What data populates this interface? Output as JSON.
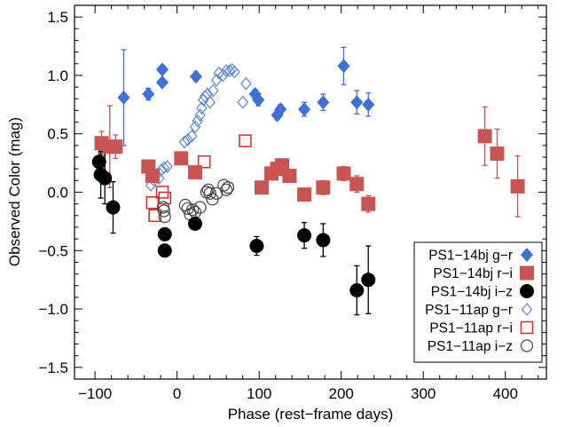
{
  "chart_data": {
    "type": "scatter",
    "xlabel": "Phase (rest−frame days)",
    "ylabel": "Observed Color (mag)",
    "xlim": [
      -125,
      450
    ],
    "ylim": [
      -1.6,
      1.6
    ],
    "xticks": [
      -100,
      0,
      100,
      200,
      300,
      400
    ],
    "xtick_labels": [
      "−100",
      "0",
      "100",
      "200",
      "300",
      "400"
    ],
    "yticks": [
      -1.5,
      -1.0,
      -0.5,
      0.0,
      0.5,
      1.0,
      1.5
    ],
    "ytick_labels": [
      "−1.5",
      "−1.0",
      "−0.5",
      "0.0",
      "0.5",
      "1.0",
      "1.5"
    ],
    "grid": false,
    "legend_position": "bottom-right",
    "series": [
      {
        "name": "PS1−14bj g−r",
        "marker": "filled-diamond",
        "color": "#3f6fd8",
        "points": [
          {
            "x": -65,
            "y": 0.81,
            "err": 0.41
          },
          {
            "x": -35,
            "y": 0.84,
            "err": 0.05
          },
          {
            "x": -18,
            "y": 0.94,
            "err": 0.03
          },
          {
            "x": -18,
            "y": 1.05,
            "err": 0.03
          },
          {
            "x": 23,
            "y": 0.99,
            "err": 0.03
          },
          {
            "x": 95,
            "y": 0.84,
            "err": 0.04
          },
          {
            "x": 99,
            "y": 0.79,
            "err": 0.05
          },
          {
            "x": 122,
            "y": 0.66,
            "err": 0.04
          },
          {
            "x": 126,
            "y": 0.71,
            "err": 0.04
          },
          {
            "x": 155,
            "y": 0.71,
            "err": 0.06
          },
          {
            "x": 178,
            "y": 0.77,
            "err": 0.07
          },
          {
            "x": 203,
            "y": 1.08,
            "err": 0.16
          },
          {
            "x": 219,
            "y": 0.77,
            "err": 0.1
          },
          {
            "x": 233,
            "y": 0.75,
            "err": 0.1
          }
        ]
      },
      {
        "name": "PS1−14bj r−i",
        "marker": "filled-square",
        "color": "#c95454",
        "points": [
          {
            "x": -92,
            "y": 0.42,
            "err": 0.1
          },
          {
            "x": -82,
            "y": 0.39,
            "err": 0.35
          },
          {
            "x": -75,
            "y": 0.39,
            "err": 0.1
          },
          {
            "x": -35,
            "y": 0.22,
            "err": 0.05
          },
          {
            "x": -30,
            "y": 0.14,
            "err": 0.05
          },
          {
            "x": 5,
            "y": 0.29,
            "err": 0.04
          },
          {
            "x": 22,
            "y": 0.17,
            "err": 0.04
          },
          {
            "x": 103,
            "y": 0.04,
            "err": 0.04
          },
          {
            "x": 115,
            "y": 0.16,
            "err": 0.05
          },
          {
            "x": 122,
            "y": 0.2,
            "err": 0.05
          },
          {
            "x": 128,
            "y": 0.23,
            "err": 0.05
          },
          {
            "x": 137,
            "y": 0.14,
            "err": 0.05
          },
          {
            "x": 155,
            "y": -0.02,
            "err": 0.05
          },
          {
            "x": 178,
            "y": 0.04,
            "err": 0.06
          },
          {
            "x": 203,
            "y": 0.16,
            "err": 0.06
          },
          {
            "x": 219,
            "y": 0.07,
            "err": 0.07
          },
          {
            "x": 233,
            "y": -0.1,
            "err": 0.07
          },
          {
            "x": 375,
            "y": 0.48,
            "err": 0.25
          },
          {
            "x": 390,
            "y": 0.33,
            "err": 0.21
          },
          {
            "x": 415,
            "y": 0.05,
            "err": 0.26
          }
        ]
      },
      {
        "name": "PS1−14bj i−z",
        "marker": "filled-circle",
        "color": "#000000",
        "points": [
          {
            "x": -95,
            "y": 0.26,
            "err": 0.15
          },
          {
            "x": -93,
            "y": 0.15,
            "err": 0.2
          },
          {
            "x": -88,
            "y": 0.12,
            "err": 0.22
          },
          {
            "x": -78,
            "y": -0.13,
            "err": 0.22
          },
          {
            "x": -15,
            "y": -0.36,
            "err": 0.05
          },
          {
            "x": -15,
            "y": -0.5,
            "err": 0.05
          },
          {
            "x": 22,
            "y": -0.27,
            "err": 0.05
          },
          {
            "x": 97,
            "y": -0.46,
            "err": 0.08
          },
          {
            "x": 155,
            "y": -0.37,
            "err": 0.11
          },
          {
            "x": 178,
            "y": -0.41,
            "err": 0.14
          },
          {
            "x": 219,
            "y": -0.84,
            "err": 0.21
          },
          {
            "x": 233,
            "y": -0.75,
            "err": 0.29
          }
        ]
      },
      {
        "name": "PS1−11ap g−r",
        "marker": "open-diamond",
        "color": "#5b86e0",
        "points": [
          {
            "x": -32,
            "y": 0.06
          },
          {
            "x": -28,
            "y": 0.1
          },
          {
            "x": -25,
            "y": 0.15
          },
          {
            "x": -22,
            "y": 0.12
          },
          {
            "x": -19,
            "y": 0.19
          },
          {
            "x": -16,
            "y": 0.21
          },
          {
            "x": -12,
            "y": 0.22
          },
          {
            "x": 9,
            "y": 0.43
          },
          {
            "x": 13,
            "y": 0.45
          },
          {
            "x": 18,
            "y": 0.48
          },
          {
            "x": 22,
            "y": 0.56
          },
          {
            "x": 25,
            "y": 0.61
          },
          {
            "x": 28,
            "y": 0.66
          },
          {
            "x": 30,
            "y": 0.72
          },
          {
            "x": 32,
            "y": 0.79
          },
          {
            "x": 34,
            "y": 0.82
          },
          {
            "x": 37,
            "y": 0.84
          },
          {
            "x": 40,
            "y": 0.77
          },
          {
            "x": 44,
            "y": 0.87
          },
          {
            "x": 48,
            "y": 0.96
          },
          {
            "x": 51,
            "y": 1.02
          },
          {
            "x": 56,
            "y": 1.0
          },
          {
            "x": 60,
            "y": 1.04
          },
          {
            "x": 64,
            "y": 1.04
          },
          {
            "x": 67,
            "y": 1.05
          },
          {
            "x": 70,
            "y": 1.03
          },
          {
            "x": 80,
            "y": 0.77
          },
          {
            "x": 84,
            "y": 0.93
          }
        ]
      },
      {
        "name": "PS1−11ap r−i",
        "marker": "open-square",
        "color": "#d42a2a",
        "points": [
          {
            "x": -30,
            "y": -0.09
          },
          {
            "x": -27,
            "y": -0.2
          },
          {
            "x": -18,
            "y": 0.0
          },
          {
            "x": -15,
            "y": -0.05
          },
          {
            "x": 33,
            "y": 0.26
          },
          {
            "x": 83,
            "y": 0.44
          }
        ]
      },
      {
        "name": "PS1−11ap i−z",
        "marker": "open-circle",
        "color": "#444444",
        "points": [
          {
            "x": -17,
            "y": -0.13
          },
          {
            "x": -16,
            "y": -0.16
          },
          {
            "x": -15,
            "y": -0.21
          },
          {
            "x": 10,
            "y": -0.11
          },
          {
            "x": 13,
            "y": -0.14
          },
          {
            "x": 16,
            "y": -0.19
          },
          {
            "x": 19,
            "y": -0.15
          },
          {
            "x": 22,
            "y": -0.17
          },
          {
            "x": 28,
            "y": -0.13
          },
          {
            "x": 36,
            "y": 0.0
          },
          {
            "x": 38,
            "y": 0.02
          },
          {
            "x": 40,
            "y": -0.01
          },
          {
            "x": 43,
            "y": -0.06
          },
          {
            "x": 48,
            "y": -0.01
          },
          {
            "x": 57,
            "y": 0.06
          },
          {
            "x": 60,
            "y": 0.02
          },
          {
            "x": 62,
            "y": 0.04
          }
        ]
      }
    ]
  }
}
